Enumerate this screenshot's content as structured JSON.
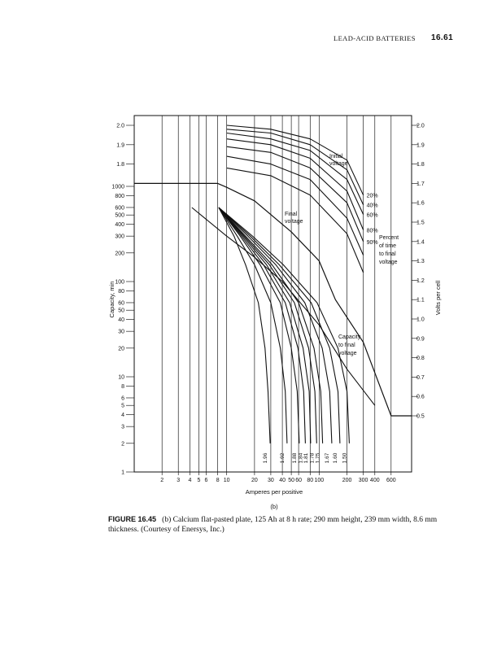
{
  "header": {
    "running_title": "LEAD-ACID BATTERIES",
    "page_number": "16.61"
  },
  "chart_data": {
    "type": "line",
    "xlabel": "Amperes per positive",
    "ylabel_left": "Capacity, min",
    "ylabel_right": "Volts per cell",
    "subfigure_label": "(b)",
    "x_scale": "log",
    "xlim": [
      1,
      1000
    ],
    "x_ticks": [
      2,
      3,
      4,
      5,
      6,
      8,
      10,
      20,
      30,
      40,
      50,
      60,
      80,
      100,
      200,
      300,
      400,
      600
    ],
    "x_tick_labels": [
      "2",
      "3",
      "4",
      "5",
      "6",
      "8",
      "10",
      "20",
      "30",
      "40",
      "50",
      "60",
      "80",
      "100",
      "200",
      "300",
      "400",
      "600"
    ],
    "left_capacity_ticks": [
      1,
      2,
      3,
      4,
      5,
      6,
      8,
      10,
      20,
      30,
      40,
      50,
      60,
      80,
      100,
      200,
      300,
      400,
      500,
      600,
      800,
      1000
    ],
    "left_capacity_labels": [
      "1",
      "2",
      "3",
      "4",
      "5",
      "6",
      "8",
      "10",
      "20",
      "30",
      "40",
      "50",
      "60",
      "80",
      "100",
      "200",
      "300",
      "400",
      "500",
      "600",
      "800",
      "1000"
    ],
    "left_volt_ticks": [
      2.0,
      1.9,
      1.8
    ],
    "left_volt_labels": [
      "2.0",
      "1.9",
      "1.8"
    ],
    "right_volt_ticks": [
      2.0,
      1.9,
      1.8,
      1.7,
      1.6,
      1.5,
      1.4,
      1.3,
      1.2,
      1.1,
      1.0,
      0.9,
      0.8,
      0.7,
      0.6,
      0.5
    ],
    "right_volt_labels": [
      "2.0",
      "1.9",
      "1.8",
      "1.7",
      "1.6",
      "1.5",
      "1.4",
      "1.3",
      "1.2",
      "1.1",
      "1.0",
      "0.9",
      "0.8",
      "0.7",
      "0.6",
      "0.5"
    ],
    "annotations": {
      "initial_voltage": "Initial voltage",
      "final_voltage": "Final voltage",
      "capacity_to_final": "Capacity to final voltage",
      "percent_of_time": "Percent of time to final voltage"
    },
    "initial_voltage_series": [
      {
        "name": "20%",
        "points": [
          [
            10,
            2.0
          ],
          [
            30,
            1.98
          ],
          [
            80,
            1.93
          ],
          [
            200,
            1.82
          ],
          [
            300,
            1.64
          ]
        ]
      },
      {
        "name": "40%",
        "points": [
          [
            10,
            1.98
          ],
          [
            30,
            1.96
          ],
          [
            80,
            1.9
          ],
          [
            200,
            1.77
          ],
          [
            300,
            1.59
          ]
        ]
      },
      {
        "name": "60%",
        "points": [
          [
            10,
            1.96
          ],
          [
            30,
            1.93
          ],
          [
            80,
            1.87
          ],
          [
            200,
            1.72
          ],
          [
            300,
            1.54
          ]
        ]
      },
      {
        "name": "80%",
        "points": [
          [
            10,
            1.93
          ],
          [
            30,
            1.9
          ],
          [
            80,
            1.83
          ],
          [
            200,
            1.66
          ],
          [
            300,
            1.46
          ]
        ]
      },
      {
        "name": "90%",
        "points": [
          [
            10,
            1.89
          ],
          [
            30,
            1.86
          ],
          [
            80,
            1.78
          ],
          [
            200,
            1.6
          ],
          [
            300,
            1.4
          ]
        ]
      },
      {
        "name": "",
        "points": [
          [
            10,
            1.84
          ],
          [
            30,
            1.8
          ],
          [
            80,
            1.72
          ],
          [
            200,
            1.52
          ],
          [
            300,
            1.33
          ]
        ]
      },
      {
        "name": "",
        "points": [
          [
            10,
            1.78
          ],
          [
            30,
            1.74
          ],
          [
            80,
            1.64
          ],
          [
            200,
            1.44
          ],
          [
            300,
            1.24
          ]
        ]
      }
    ],
    "final_voltage_series": {
      "points": [
        [
          1,
          1.7
        ],
        [
          8,
          1.7
        ],
        [
          10,
          1.68
        ],
        [
          20,
          1.61
        ],
        [
          50,
          1.45
        ],
        [
          100,
          1.3
        ],
        [
          150,
          1.1
        ],
        [
          300,
          0.88
        ],
        [
          600,
          0.5
        ],
        [
          1000,
          0.5
        ]
      ]
    },
    "capacity_envelope": {
      "points": [
        [
          4.2,
          600
        ],
        [
          10,
          300
        ],
        [
          20,
          180
        ],
        [
          40,
          100
        ],
        [
          100,
          35
        ],
        [
          200,
          12
        ],
        [
          400,
          5
        ]
      ]
    },
    "capacity_curves": [
      {
        "name": "1.96",
        "points": [
          [
            8.2,
            600
          ],
          [
            12,
            300
          ],
          [
            16,
            150
          ],
          [
            22,
            60
          ],
          [
            26,
            20
          ],
          [
            28,
            7
          ],
          [
            29.5,
            2
          ]
        ]
      },
      {
        "name": "1.92",
        "points": [
          [
            8.2,
            600
          ],
          [
            13,
            300
          ],
          [
            20,
            150
          ],
          [
            30,
            60
          ],
          [
            38,
            20
          ],
          [
            43,
            7
          ],
          [
            45,
            2
          ]
        ]
      },
      {
        "name": "1.88",
        "points": [
          [
            8.2,
            600
          ],
          [
            14,
            300
          ],
          [
            23,
            150
          ],
          [
            38,
            60
          ],
          [
            50,
            20
          ],
          [
            58,
            7
          ],
          [
            61,
            2
          ]
        ]
      },
      {
        "name": "1.84",
        "points": [
          [
            8.2,
            600
          ],
          [
            14.5,
            300
          ],
          [
            25,
            150
          ],
          [
            43,
            60
          ],
          [
            59,
            20
          ],
          [
            68,
            7
          ],
          [
            71,
            2
          ]
        ]
      },
      {
        "name": "1.81",
        "points": [
          [
            8.2,
            600
          ],
          [
            15,
            300
          ],
          [
            27,
            150
          ],
          [
            48,
            60
          ],
          [
            67,
            20
          ],
          [
            78,
            7
          ],
          [
            81,
            2
          ]
        ]
      },
      {
        "name": "1.78",
        "points": [
          [
            8.2,
            600
          ],
          [
            15.5,
            300
          ],
          [
            29,
            150
          ],
          [
            54,
            60
          ],
          [
            77,
            20
          ],
          [
            90,
            7
          ],
          [
            94,
            2
          ]
        ]
      },
      {
        "name": "1.75",
        "points": [
          [
            8.2,
            600
          ],
          [
            16,
            300
          ],
          [
            31,
            150
          ],
          [
            60,
            60
          ],
          [
            88,
            20
          ],
          [
            104,
            7
          ],
          [
            109,
            2
          ]
        ]
      },
      {
        "name": "1.67",
        "points": [
          [
            8.2,
            600
          ],
          [
            17,
            300
          ],
          [
            34,
            150
          ],
          [
            70,
            60
          ],
          [
            108,
            20
          ],
          [
            130,
            7
          ],
          [
            137,
            2
          ]
        ]
      },
      {
        "name": "1.60",
        "points": [
          [
            8.2,
            600
          ],
          [
            18,
            300
          ],
          [
            37,
            150
          ],
          [
            82,
            60
          ],
          [
            130,
            20
          ],
          [
            160,
            7
          ],
          [
            168,
            2
          ]
        ]
      },
      {
        "name": "1.50",
        "points": [
          [
            8.2,
            600
          ],
          [
            19,
            300
          ],
          [
            41,
            150
          ],
          [
            95,
            60
          ],
          [
            160,
            20
          ],
          [
            200,
            7
          ],
          [
            212,
            2
          ]
        ]
      }
    ]
  },
  "caption": {
    "label": "FIGURE 16.45",
    "text": "(b) Calcium flat-pasted plate, 125 Ah at 8 h rate; 290 mm height, 239 mm width, 8.6 mm thickness. (Courtesy of Enersys, Inc.)"
  }
}
